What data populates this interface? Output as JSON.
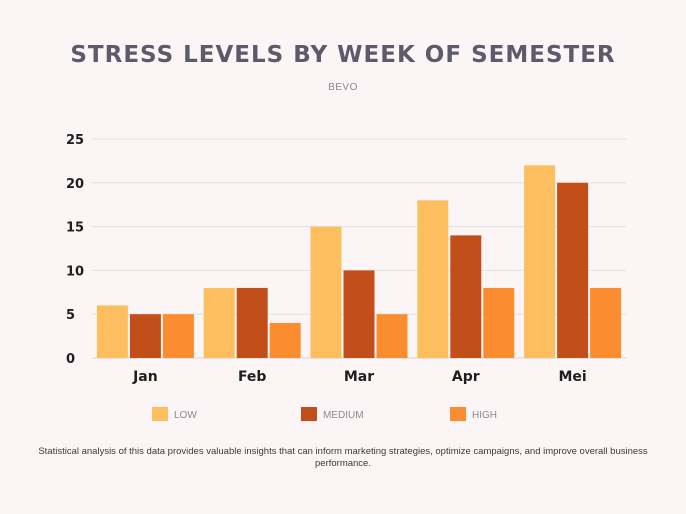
{
  "chart_data": {
    "type": "bar",
    "title": "STRESS LEVELS BY WEEK OF SEMESTER",
    "subtitle": "BEVO",
    "xlabel": "",
    "ylabel": "",
    "categories": [
      "Jan",
      "Feb",
      "Mar",
      "Apr",
      "Mei"
    ],
    "series": [
      {
        "name": "LOW",
        "values": [
          6,
          8,
          15,
          18,
          22
        ],
        "color": "#fdbe5f"
      },
      {
        "name": "MEDIUM",
        "values": [
          5,
          8,
          10,
          14,
          20
        ],
        "color": "#c24e19"
      },
      {
        "name": "HIGH",
        "values": [
          5,
          4,
          5,
          8,
          8
        ],
        "color": "#fb8c2f"
      }
    ],
    "ylim": [
      0,
      25
    ],
    "yticks": [
      "0",
      "5",
      "10",
      "15",
      "20",
      "25"
    ],
    "ytick_values": [
      0,
      5,
      10,
      15,
      20,
      25
    ],
    "grid": true,
    "legend_position": "bottom"
  },
  "footnote": "Statistical analysis of this data provides valuable insights that can inform marketing strategies, optimize campaigns, and improve overall business performance."
}
